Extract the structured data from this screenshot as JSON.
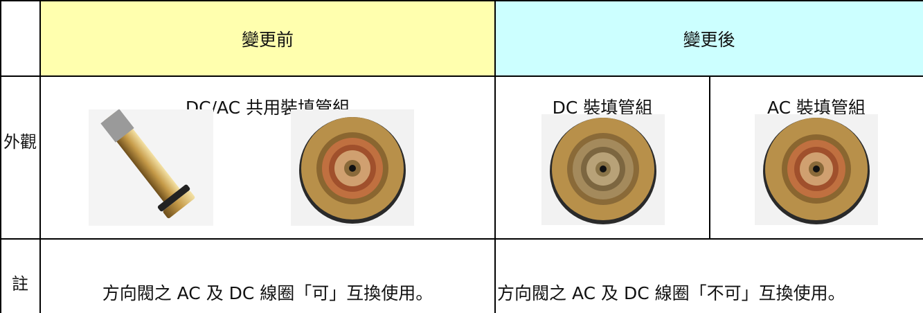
{
  "table": {
    "header": {
      "before": "變更前",
      "after": "變更後"
    },
    "rows": [
      {
        "label": "外觀",
        "cells": [
          "DC/AC 共用裝填管組",
          "DC 裝填管組",
          "AC 裝填管組"
        ]
      },
      {
        "label": "註",
        "cells": [
          "方向閥之 AC 及 DC 線圈「可」互換使用。",
          "方向閥之 AC 及 DC 線圈「不可」互換使用。"
        ]
      }
    ]
  }
}
